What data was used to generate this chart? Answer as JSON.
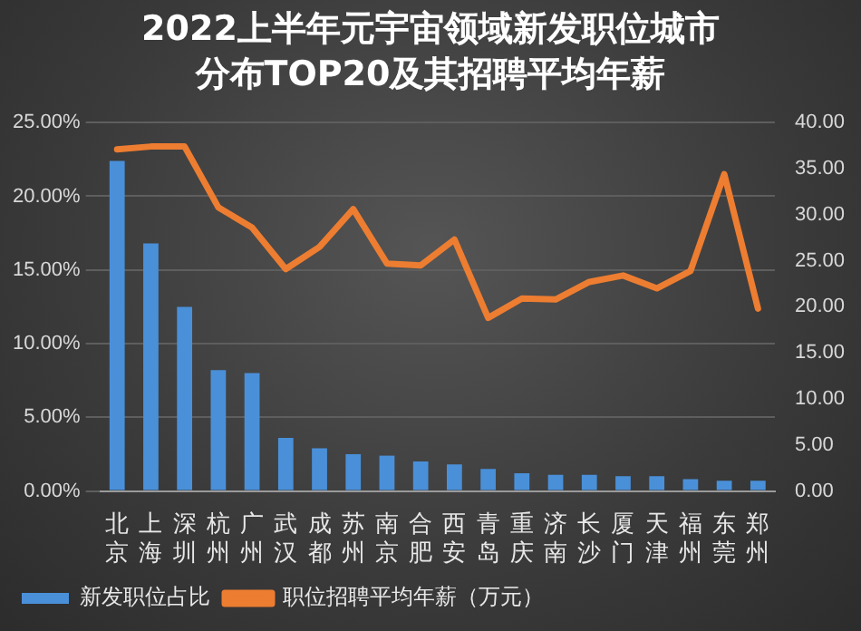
{
  "chart_data": {
    "type": "bar",
    "title": "2022上半年元宇宙领域新发职位城市分布TOP20及其招聘平均年薪",
    "categories": [
      "北京",
      "上海",
      "深圳",
      "杭州",
      "广州",
      "武汉",
      "成都",
      "苏州",
      "南京",
      "合肥",
      "西安",
      "青岛",
      "重庆",
      "济南",
      "长沙",
      "厦门",
      "天津",
      "福州",
      "东莞",
      "郑州"
    ],
    "series": [
      {
        "name": "新发职位占比",
        "color": "#4a90d9",
        "values": [
          22.4,
          16.8,
          12.5,
          8.2,
          8.0,
          3.6,
          2.9,
          2.5,
          2.4,
          2.0,
          1.8,
          1.5,
          1.2,
          1.1,
          1.1,
          1.0,
          1.0,
          0.8,
          0.7,
          0.7
        ]
      },
      {
        "name": "职位招聘平均年薪（万元）",
        "type": "line",
        "axis": "y2",
        "color": "#ed7d31",
        "values": [
          37.1,
          37.4,
          37.4,
          30.8,
          28.6,
          24.1,
          26.5,
          30.6,
          24.7,
          24.5,
          27.3,
          18.8,
          20.9,
          20.8,
          22.7,
          23.4,
          22.0,
          23.9,
          34.4,
          19.8
        ]
      }
    ],
    "ylim": [
      0,
      25
    ],
    "yticks": [
      {
        "value": 0,
        "label": "0.00%"
      },
      {
        "value": 5,
        "label": "5.00%"
      },
      {
        "value": 10,
        "label": "10.00%"
      },
      {
        "value": 15,
        "label": "15.00%"
      },
      {
        "value": 20,
        "label": "20.00%"
      },
      {
        "value": 25,
        "label": "25.00%"
      }
    ],
    "y2lim": [
      0,
      40
    ],
    "y2ticks": [
      {
        "value": 0,
        "label": "0.00"
      },
      {
        "value": 5,
        "label": "5.00"
      },
      {
        "value": 10,
        "label": "10.00"
      },
      {
        "value": 15,
        "label": "15.00"
      },
      {
        "value": 20,
        "label": "20.00"
      },
      {
        "value": 25,
        "label": "25.00"
      },
      {
        "value": 30,
        "label": "30.00"
      },
      {
        "value": 35,
        "label": "35.00"
      },
      {
        "value": 40,
        "label": "40.00"
      }
    ],
    "grid": "y",
    "legend": "bottom",
    "marker": "none"
  }
}
